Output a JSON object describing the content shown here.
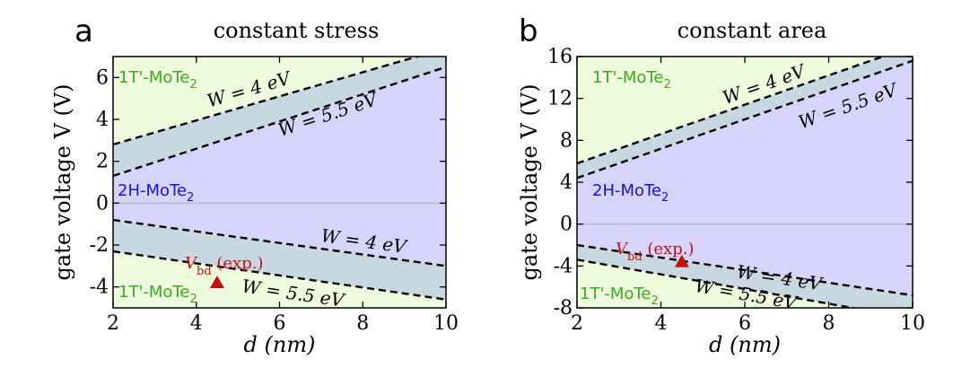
{
  "colors": {
    "green": "#eefbdc",
    "gray": "#c8d8e0",
    "blue": "#d6d4fb",
    "phase_green_text": "#3caa1e",
    "phase_blue_text": "#1414dc",
    "marker": "#c80f0f",
    "zero_line": "#b4b4d2"
  },
  "shared": {
    "ylabel": "gate voltage V (V)",
    "xlabel": "d (nm)",
    "phase_1t": "1T'-MoTe",
    "phase_2h": "2H-MoTe",
    "subscript": "2",
    "w4": "W = 4 eV",
    "w55": "W = 5.5 eV",
    "vbd_main": "V",
    "vbd_sub": "bd",
    "vbd_tail": " (exp.)"
  },
  "chart_data": [
    {
      "panel_letter": "a",
      "title": "constant stress",
      "type": "line",
      "xlim": [
        2,
        10
      ],
      "ylim": [
        -5,
        7
      ],
      "xticks": [
        2,
        4,
        6,
        8,
        10
      ],
      "yticks": [
        -4,
        -2,
        0,
        2,
        4,
        6
      ],
      "series": [
        {
          "name": "W = 4 eV",
          "x": [
            2,
            10
          ],
          "y": [
            2.8,
            7.4
          ]
        },
        {
          "name": "W = 5.5 eV",
          "x": [
            2,
            10
          ],
          "y": [
            1.3,
            6.5
          ]
        },
        {
          "name": "W = 4 eV",
          "x": [
            2,
            10
          ],
          "y": [
            -0.8,
            -3.0
          ]
        },
        {
          "name": "W = 5.5 eV",
          "x": [
            2,
            10
          ],
          "y": [
            -2.3,
            -4.6
          ]
        }
      ],
      "marker": {
        "label": "V_bd (exp.)",
        "x": 4.5,
        "y": -3.8
      }
    },
    {
      "panel_letter": "b",
      "title": "constant area",
      "type": "line",
      "xlim": [
        2,
        10
      ],
      "ylim": [
        -8,
        16
      ],
      "xticks": [
        2,
        4,
        6,
        8,
        10
      ],
      "yticks": [
        -8,
        -4,
        0,
        4,
        8,
        12,
        16
      ],
      "series": [
        {
          "name": "W = 4 eV",
          "x": [
            2,
            10
          ],
          "y": [
            5.8,
            17.0
          ]
        },
        {
          "name": "W = 5.5 eV",
          "x": [
            2,
            10
          ],
          "y": [
            4.4,
            15.6
          ]
        },
        {
          "name": "W = 4 eV",
          "x": [
            2,
            10
          ],
          "y": [
            -2.0,
            -6.8
          ]
        },
        {
          "name": "W = 5.5 eV",
          "x": [
            2,
            10
          ],
          "y": [
            -3.4,
            -9.0
          ]
        }
      ],
      "marker": {
        "label": "V_bd (exp.)",
        "x": 4.5,
        "y": -3.6
      }
    }
  ]
}
